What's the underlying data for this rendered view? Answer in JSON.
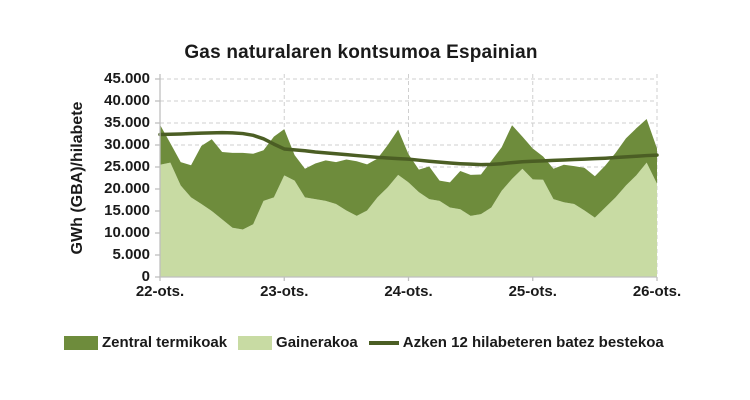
{
  "chart_data": {
    "type": "area",
    "title": "Gas naturalaren kontsumoa Espainian",
    "ylabel": "GWh (GBA)/hilabete",
    "xlabel": "",
    "stacked": true,
    "grid": "dashed-light-gray",
    "legend_position": "bottom",
    "ylim": [
      0,
      45000
    ],
    "y_tick_step": 5000,
    "y_tick_labels": [
      "0",
      "5.000",
      "10.000",
      "15.000",
      "20.000",
      "25.000",
      "30.000",
      "35.000",
      "40.000",
      "45.000"
    ],
    "x_ticks": [
      {
        "index": 0,
        "label": "22-ots."
      },
      {
        "index": 12,
        "label": "23-ots."
      },
      {
        "index": 24,
        "label": "24-ots."
      },
      {
        "index": 36,
        "label": "25-ots."
      },
      {
        "index": 48,
        "label": "26-ots."
      }
    ],
    "points_are_monthly": true,
    "series": [
      {
        "name": "Gainerakoa",
        "type": "area",
        "stack_order": 0,
        "color": "#c8dba3",
        "values": [
          25500,
          26000,
          20800,
          18100,
          16600,
          15000,
          13100,
          11200,
          10800,
          12000,
          17300,
          18100,
          23100,
          21900,
          18100,
          17700,
          17300,
          16600,
          15100,
          13900,
          15100,
          18100,
          20400,
          23200,
          21500,
          19300,
          17700,
          17300,
          15800,
          15400,
          13900,
          14300,
          15800,
          19600,
          22300,
          24600,
          22200,
          22100,
          17700,
          17000,
          16600,
          15100,
          13500,
          15800,
          18100,
          20800,
          23100,
          26000,
          21200
        ]
      },
      {
        "name": "Zentral termikoak",
        "type": "area",
        "stack_order": 1,
        "color": "#6e8c3c",
        "values": [
          9100,
          4400,
          5300,
          7300,
          13200,
          16300,
          15300,
          17000,
          17400,
          16000,
          11500,
          13800,
          10500,
          5800,
          6500,
          8100,
          9200,
          9500,
          11600,
          12400,
          10500,
          8800,
          9600,
          10300,
          6400,
          5100,
          7400,
          4600,
          5700,
          8700,
          9300,
          9000,
          10600,
          9900,
          12200,
          7300,
          7000,
          5300,
          6900,
          8500,
          8600,
          9700,
          9400,
          9500,
          10100,
          10700,
          10700,
          9900,
          8000
        ]
      },
      {
        "name": "Azken 12 hilabeteren batez bestekoa",
        "type": "line",
        "color": "#4b5e24",
        "values": [
          32400,
          32450,
          32500,
          32600,
          32700,
          32750,
          32800,
          32750,
          32600,
          32200,
          31400,
          30200,
          29100,
          28900,
          28700,
          28400,
          28200,
          28000,
          27800,
          27600,
          27400,
          27200,
          27050,
          26900,
          26800,
          26550,
          26300,
          26100,
          25900,
          25750,
          25650,
          25550,
          25600,
          25750,
          26000,
          26200,
          26300,
          26400,
          26500,
          26600,
          26700,
          26800,
          26900,
          27000,
          27150,
          27300,
          27450,
          27600,
          27700
        ]
      }
    ],
    "axis_color": "#bfbfbf",
    "gridline_color": "#cfcfcf",
    "text_color": "#1a1a1a"
  }
}
